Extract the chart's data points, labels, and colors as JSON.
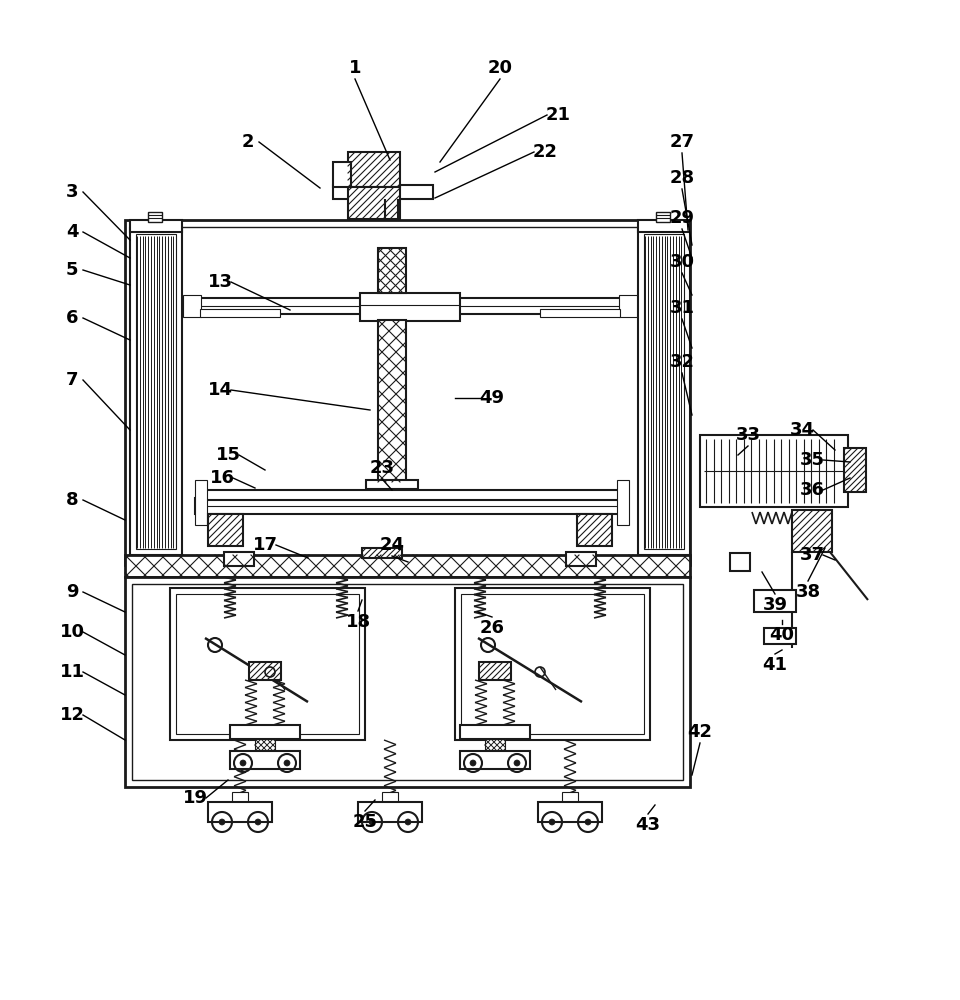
{
  "bg": "#ffffff",
  "lc": "#1a1a1a",
  "figsize": [
    9.6,
    10.0
  ],
  "dpi": 100,
  "leaders": [
    [
      "1",
      355,
      68,
      390,
      160
    ],
    [
      "2",
      248,
      142,
      320,
      188
    ],
    [
      "3",
      72,
      192,
      130,
      240
    ],
    [
      "4",
      72,
      232,
      130,
      258
    ],
    [
      "5",
      72,
      270,
      130,
      285
    ],
    [
      "6",
      72,
      318,
      130,
      340
    ],
    [
      "7",
      72,
      380,
      130,
      430
    ],
    [
      "8",
      72,
      500,
      125,
      520
    ],
    [
      "9",
      72,
      592,
      125,
      612
    ],
    [
      "10",
      72,
      632,
      125,
      655
    ],
    [
      "11",
      72,
      672,
      125,
      695
    ],
    [
      "12",
      72,
      715,
      125,
      740
    ],
    [
      "13",
      220,
      282,
      290,
      310
    ],
    [
      "14",
      220,
      390,
      370,
      410
    ],
    [
      "15",
      228,
      455,
      265,
      470
    ],
    [
      "16",
      222,
      478,
      255,
      488
    ],
    [
      "17",
      265,
      545,
      308,
      558
    ],
    [
      "18",
      358,
      622,
      362,
      600
    ],
    [
      "19",
      195,
      798,
      228,
      780
    ],
    [
      "20",
      500,
      68,
      440,
      162
    ],
    [
      "21",
      558,
      115,
      435,
      172
    ],
    [
      "22",
      545,
      152,
      435,
      198
    ],
    [
      "23",
      382,
      468,
      392,
      490
    ],
    [
      "24",
      392,
      545,
      408,
      562
    ],
    [
      "25",
      365,
      822,
      375,
      800
    ],
    [
      "26",
      492,
      628,
      478,
      612
    ],
    [
      "27",
      682,
      142,
      688,
      230
    ],
    [
      "28",
      682,
      178,
      692,
      245
    ],
    [
      "29",
      682,
      218,
      692,
      258
    ],
    [
      "30",
      682,
      262,
      692,
      295
    ],
    [
      "31",
      682,
      308,
      692,
      348
    ],
    [
      "32",
      682,
      362,
      692,
      415
    ],
    [
      "33",
      748,
      435,
      738,
      455
    ],
    [
      "34",
      802,
      430,
      835,
      450
    ],
    [
      "35",
      812,
      460,
      850,
      462
    ],
    [
      "36",
      812,
      490,
      850,
      478
    ],
    [
      "37",
      812,
      555,
      835,
      560
    ],
    [
      "38",
      808,
      592,
      825,
      548
    ],
    [
      "39",
      775,
      605,
      762,
      572
    ],
    [
      "40",
      782,
      635,
      782,
      620
    ],
    [
      "41",
      775,
      665,
      782,
      650
    ],
    [
      "42",
      700,
      732,
      692,
      775
    ],
    [
      "43",
      648,
      825,
      655,
      805
    ],
    [
      "49",
      492,
      398,
      455,
      398
    ]
  ]
}
